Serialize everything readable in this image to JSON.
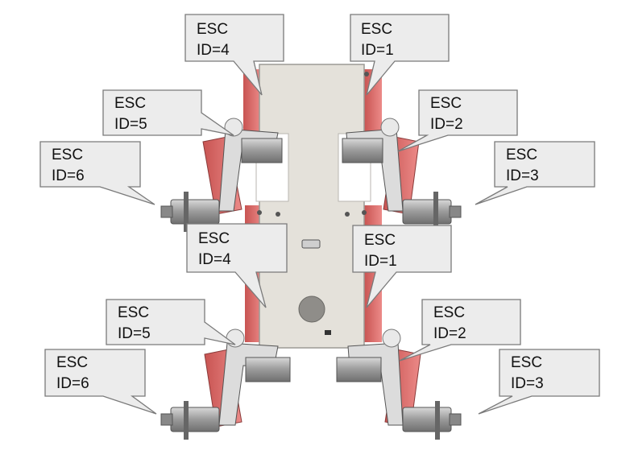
{
  "callouts": [
    {
      "id": "top-left-esc4",
      "line1": "ESC",
      "line2": "ID=4"
    },
    {
      "id": "top-right-esc1",
      "line1": "ESC",
      "line2": "ID=1"
    },
    {
      "id": "top-left-esc5",
      "line1": "ESC",
      "line2": "ID=5"
    },
    {
      "id": "top-right-esc2",
      "line1": "ESC",
      "line2": "ID=2"
    },
    {
      "id": "top-left-esc6",
      "line1": "ESC",
      "line2": "ID=6"
    },
    {
      "id": "top-right-esc3",
      "line1": "ESC",
      "line2": "ID=3"
    },
    {
      "id": "bottom-left-esc4",
      "line1": "ESC",
      "line2": "ID=4"
    },
    {
      "id": "bottom-right-esc1",
      "line1": "ESC",
      "line2": "ID=1"
    },
    {
      "id": "bottom-left-esc5",
      "line1": "ESC",
      "line2": "ID=5"
    },
    {
      "id": "bottom-right-esc2",
      "line1": "ESC",
      "line2": "ID=2"
    },
    {
      "id": "bottom-left-esc6",
      "line1": "ESC",
      "line2": "ID=6"
    },
    {
      "id": "bottom-right-esc3",
      "line1": "ESC",
      "line2": "ID=3"
    }
  ],
  "colors": {
    "plate": "#e4e1da",
    "plate_edge": "#9c9a95",
    "esc_red": "#e0706e",
    "callout_fill": "#ececec",
    "callout_stroke": "#7a7a7a",
    "motor_grey": "#a7a7a7"
  }
}
